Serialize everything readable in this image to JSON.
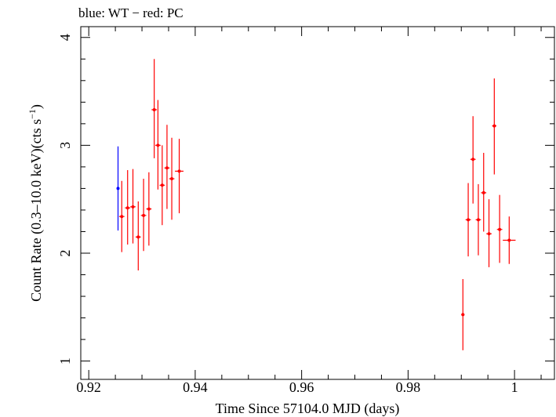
{
  "chart_data": {
    "type": "scatter",
    "title": "blue: WT − red: PC",
    "xlabel": "Time Since 57104.0 MJD (days)",
    "ylabel_main": "Count Rate (0.3–10.0 keV)(cts s",
    "ylabel_sup": "−1",
    "ylabel_end": ")",
    "xlim": [
      0.9185,
      1.0075
    ],
    "ylim": [
      0.83,
      4.1
    ],
    "x_ticks": [
      0.92,
      0.94,
      0.96,
      0.98,
      1.0
    ],
    "x_tick_labels": [
      "0.92",
      "0.94",
      "0.96",
      "0.98",
      "1"
    ],
    "y_ticks": [
      1,
      2,
      3,
      4
    ],
    "y_tick_labels": [
      "1",
      "2",
      "3",
      "4"
    ],
    "grid": false,
    "series": [
      {
        "color": "#0000ff",
        "points": [
          {
            "x": 0.9255,
            "y": 2.6,
            "xerr": 0.0,
            "ylo": 2.21,
            "yhi": 2.99
          }
        ]
      },
      {
        "color": "#ff0000",
        "points": [
          {
            "x": 0.9262,
            "y": 2.34,
            "xerr": 0.0005,
            "ylo": 2.01,
            "yhi": 2.67
          },
          {
            "x": 0.9273,
            "y": 2.42,
            "xerr": 0.0005,
            "ylo": 2.08,
            "yhi": 2.77
          },
          {
            "x": 0.9283,
            "y": 2.43,
            "xerr": 0.0005,
            "ylo": 2.09,
            "yhi": 2.78
          },
          {
            "x": 0.9293,
            "y": 2.15,
            "xerr": 0.0005,
            "ylo": 1.84,
            "yhi": 2.48
          },
          {
            "x": 0.9303,
            "y": 2.35,
            "xerr": 0.0005,
            "ylo": 2.02,
            "yhi": 2.69
          },
          {
            "x": 0.9313,
            "y": 2.41,
            "xerr": 0.0005,
            "ylo": 2.07,
            "yhi": 2.75
          },
          {
            "x": 0.9323,
            "y": 3.33,
            "xerr": 0.0005,
            "ylo": 2.88,
            "yhi": 3.8
          },
          {
            "x": 0.933,
            "y": 3.0,
            "xerr": 0.0005,
            "ylo": 2.59,
            "yhi": 3.42
          },
          {
            "x": 0.9338,
            "y": 2.63,
            "xerr": 0.0005,
            "ylo": 2.26,
            "yhi": 3.0
          },
          {
            "x": 0.9347,
            "y": 2.79,
            "xerr": 0.0005,
            "ylo": 2.41,
            "yhi": 3.19
          },
          {
            "x": 0.9356,
            "y": 2.69,
            "xerr": 0.0005,
            "ylo": 2.31,
            "yhi": 3.07
          },
          {
            "x": 0.937,
            "y": 2.76,
            "xerr": 0.0008,
            "ylo": 2.37,
            "yhi": 3.06
          },
          {
            "x": 0.9903,
            "y": 1.43,
            "xerr": 0.0003,
            "ylo": 1.1,
            "yhi": 1.76
          },
          {
            "x": 0.9913,
            "y": 2.31,
            "xerr": 0.0005,
            "ylo": 1.97,
            "yhi": 2.65
          },
          {
            "x": 0.9922,
            "y": 2.87,
            "xerr": 0.0005,
            "ylo": 2.46,
            "yhi": 3.27
          },
          {
            "x": 0.9932,
            "y": 2.31,
            "xerr": 0.0005,
            "ylo": 1.98,
            "yhi": 2.64
          },
          {
            "x": 0.9942,
            "y": 2.56,
            "xerr": 0.0005,
            "ylo": 2.2,
            "yhi": 2.93
          },
          {
            "x": 0.9952,
            "y": 2.18,
            "xerr": 0.0005,
            "ylo": 1.87,
            "yhi": 2.5
          },
          {
            "x": 0.9962,
            "y": 3.18,
            "xerr": 0.0004,
            "ylo": 2.73,
            "yhi": 3.62
          },
          {
            "x": 0.9972,
            "y": 2.22,
            "xerr": 0.0005,
            "ylo": 1.91,
            "yhi": 2.54
          },
          {
            "x": 0.999,
            "y": 2.12,
            "xerr": 0.0012,
            "ylo": 1.9,
            "yhi": 2.34
          }
        ]
      }
    ]
  }
}
